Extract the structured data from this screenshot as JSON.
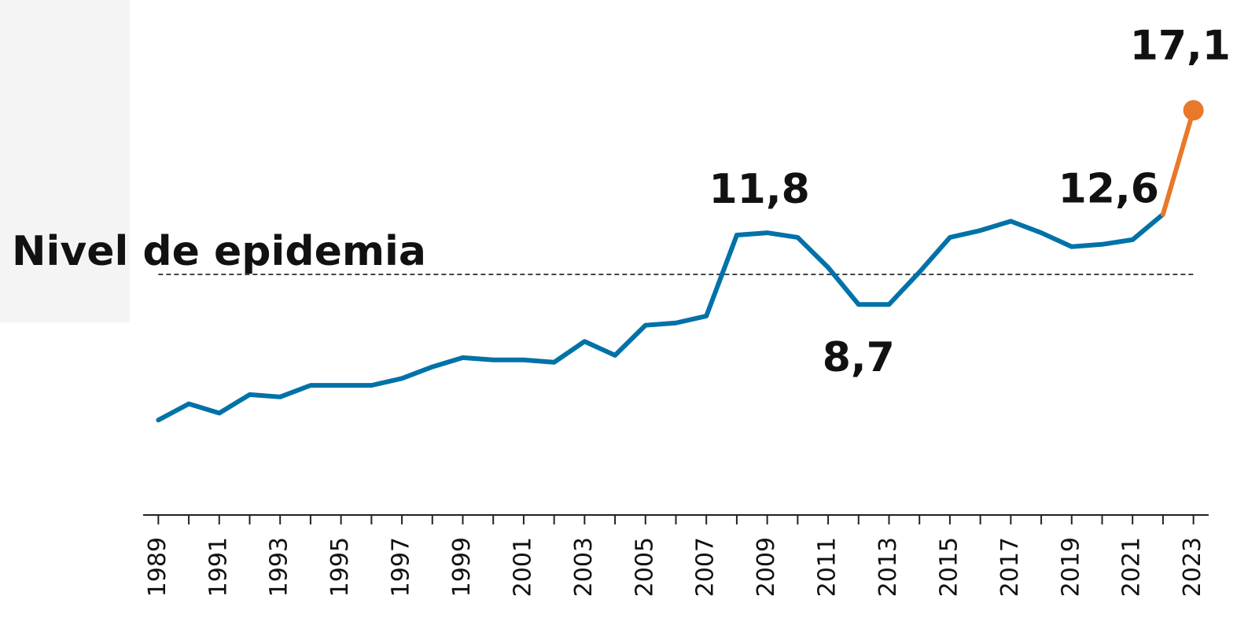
{
  "chart_data": {
    "type": "line",
    "x": [
      1989,
      1990,
      1991,
      1992,
      1993,
      1994,
      1995,
      1996,
      1997,
      1998,
      1999,
      2000,
      2001,
      2002,
      2003,
      2004,
      2005,
      2006,
      2007,
      2008,
      2009,
      2010,
      2011,
      2012,
      2013,
      2014,
      2015,
      2016,
      2017,
      2018,
      2019,
      2020,
      2021,
      2022,
      2023
    ],
    "values": [
      3.7,
      4.4,
      4.0,
      4.8,
      4.7,
      5.2,
      5.2,
      5.2,
      5.5,
      6.0,
      6.4,
      6.3,
      6.3,
      6.2,
      7.1,
      6.5,
      7.8,
      7.9,
      8.2,
      11.7,
      11.8,
      11.6,
      10.3,
      8.7,
      8.7,
      10.1,
      11.6,
      11.9,
      12.3,
      11.8,
      11.2,
      11.3,
      11.5,
      12.6,
      17.1
    ],
    "value_labels": [
      null,
      null,
      null,
      null,
      null,
      null,
      null,
      null,
      null,
      null,
      null,
      null,
      null,
      null,
      null,
      null,
      null,
      null,
      null,
      null,
      "11,8",
      null,
      null,
      "8,7",
      null,
      null,
      null,
      null,
      null,
      null,
      null,
      null,
      null,
      "12,6",
      "17,1"
    ],
    "color": "#0072a8",
    "last_color": "#e8782a",
    "xlim": [
      1988.5,
      2023.5
    ],
    "xticks": [
      1989,
      1991,
      1993,
      1995,
      1997,
      1999,
      2001,
      2003,
      2005,
      2007,
      2009,
      2011,
      2013,
      2015,
      2017,
      2019,
      2021,
      2023
    ],
    "ylim": [
      0,
      20
    ],
    "reference": {
      "value": 10,
      "label": "Nivel de epidemia"
    }
  }
}
